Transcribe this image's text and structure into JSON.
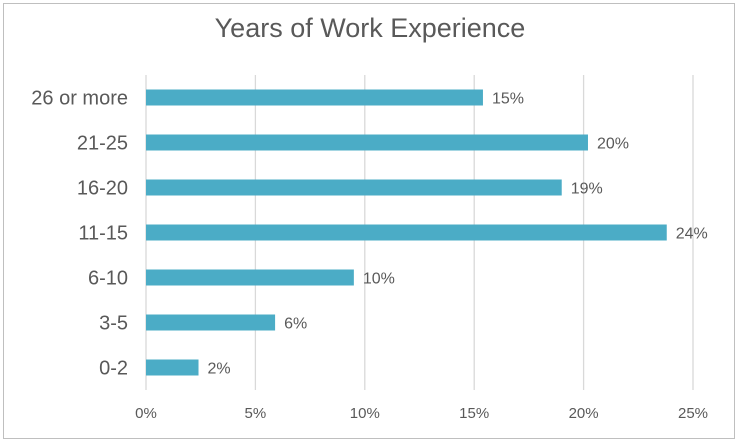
{
  "chart_data": {
    "type": "bar",
    "orientation": "horizontal",
    "title": "Years of Work Experience",
    "xlabel": "",
    "ylabel": "",
    "categories": [
      "26 or more",
      "21-25",
      "16-20",
      "11-15",
      "6-10",
      "3-5",
      "0-2"
    ],
    "values": [
      15.4,
      20.2,
      19.0,
      23.8,
      9.5,
      5.9,
      2.4
    ],
    "data_labels": [
      "15%",
      "20%",
      "19%",
      "24%",
      "10%",
      "6%",
      "2%"
    ],
    "x_ticks": [
      "0%",
      "5%",
      "10%",
      "15%",
      "20%",
      "25%"
    ],
    "xlim": [
      0,
      25
    ],
    "x_tick_step": 5,
    "grid": "vertical",
    "legend": "none",
    "bar_color": "#4bacc6",
    "grid_color": "#d9d9d9",
    "text_color": "#595959"
  }
}
